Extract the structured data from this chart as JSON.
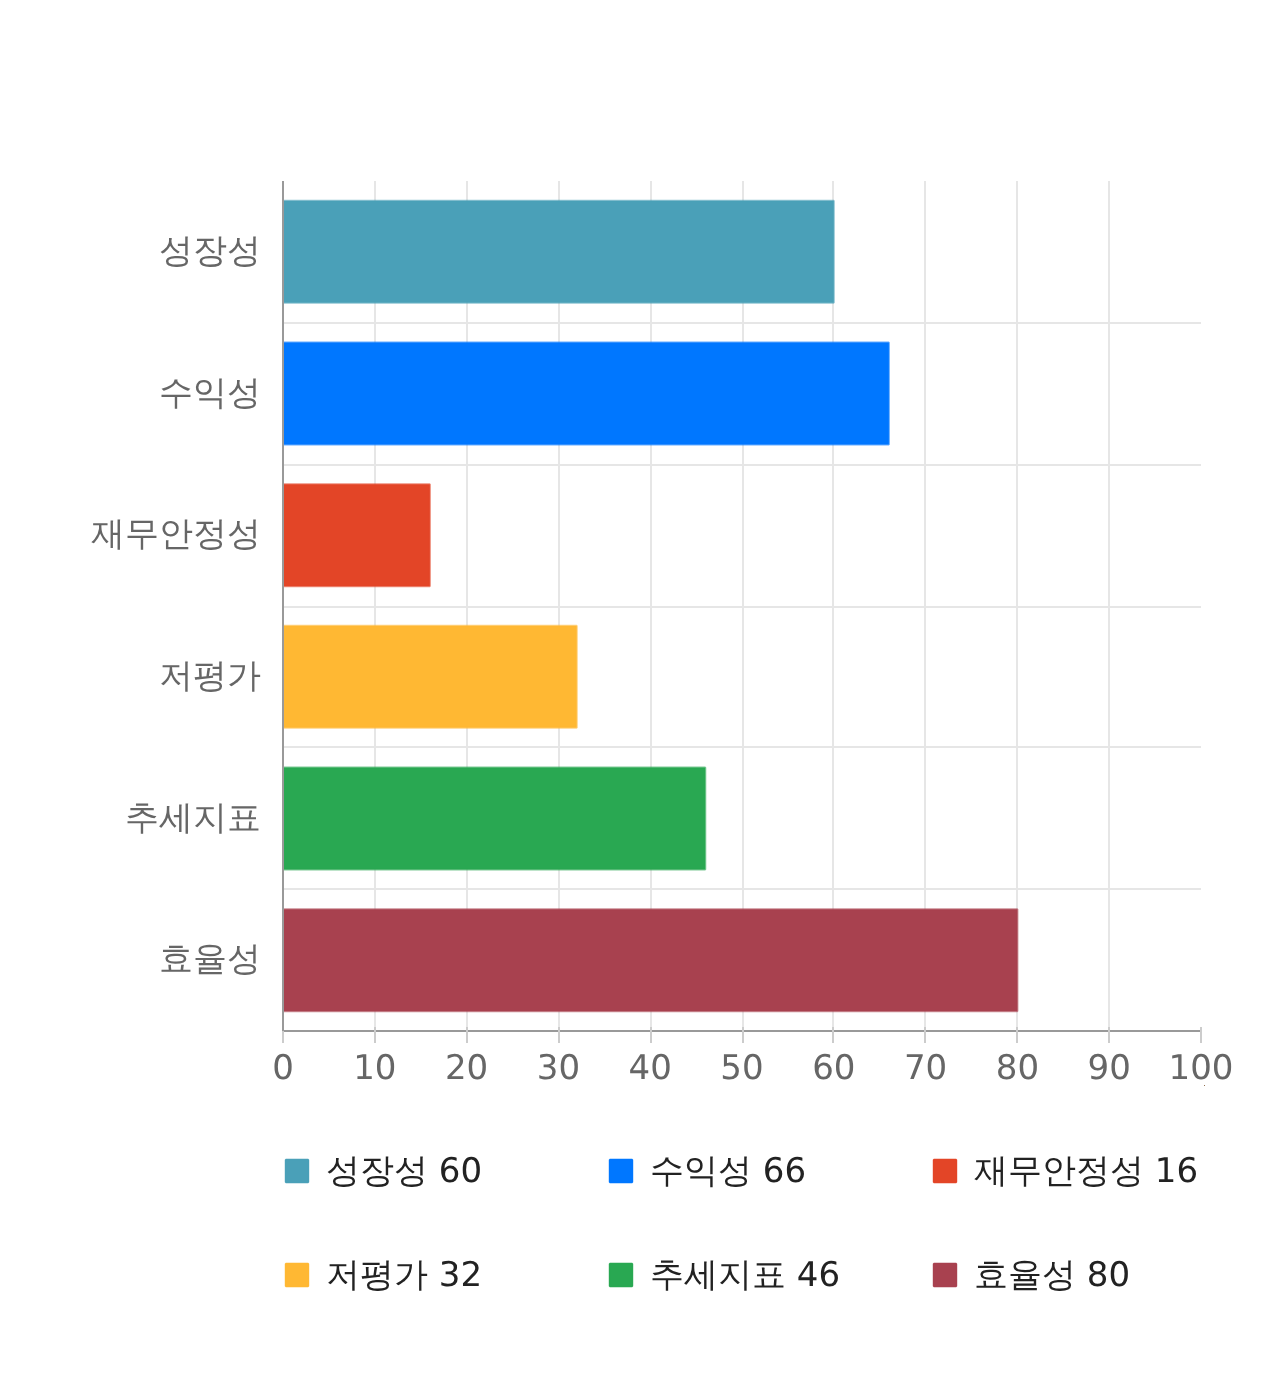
{
  "chart_data": {
    "type": "bar",
    "orientation": "horizontal",
    "stacked": true,
    "categories": [
      "성장성",
      "수익성",
      "재무안정성",
      "저평가",
      "추세지표",
      "효율성"
    ],
    "series": [
      {
        "name": "성장성 60",
        "color": "#4aa0b8",
        "values": [
          60,
          null,
          null,
          null,
          null,
          null
        ]
      },
      {
        "name": "수익성 66",
        "color": "#0077ff",
        "values": [
          null,
          66,
          null,
          null,
          null,
          null
        ]
      },
      {
        "name": "재무안정성 16",
        "color": "#e34527",
        "values": [
          null,
          null,
          16,
          null,
          null,
          null
        ]
      },
      {
        "name": "저평가 32",
        "color": "#ffb833",
        "values": [
          null,
          null,
          null,
          32,
          null,
          null
        ]
      },
      {
        "name": "추세지표 46",
        "color": "#29a852",
        "values": [
          null,
          null,
          null,
          null,
          46,
          null
        ]
      },
      {
        "name": "효율성 80",
        "color": "#a8414f",
        "values": [
          null,
          null,
          null,
          null,
          null,
          80
        ]
      }
    ],
    "xlim": [
      0,
      100
    ],
    "xticks": [
      0,
      10,
      20,
      30,
      40,
      50,
      60,
      70,
      80,
      90,
      100
    ],
    "grid": true,
    "legend": "bottom"
  }
}
